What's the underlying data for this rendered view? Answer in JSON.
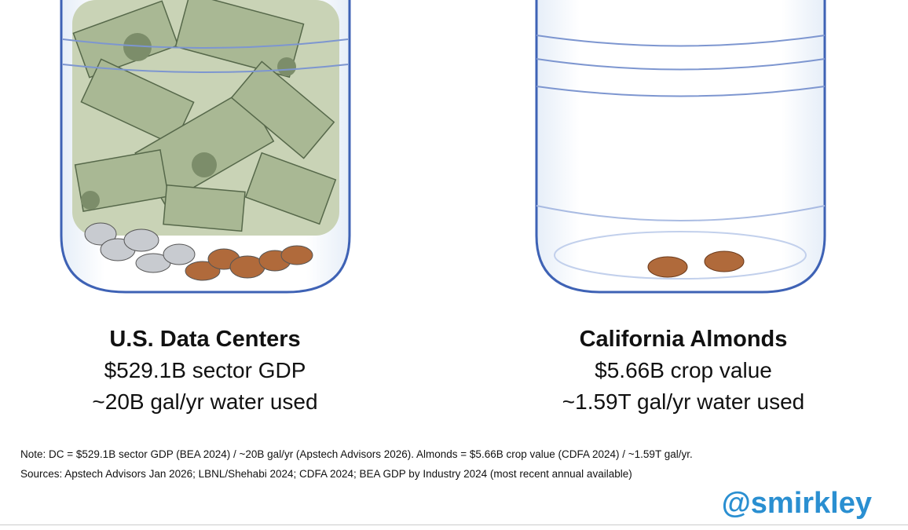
{
  "panels": [
    {
      "title": "U.S. Data Centers",
      "lines": [
        "$529.1B sector GDP",
        "~20B gal/yr water used"
      ]
    },
    {
      "title": "California Almonds",
      "lines": [
        "$5.66B crop value",
        "~1.59T gal/yr water used"
      ]
    }
  ],
  "notes": [
    "Note: DC = $529.1B sector GDP (BEA 2024) / ~20B gal/yr (Apstech Advisors 2026). Almonds = $5.66B crop value (CDFA 2024) / ~1.59T gal/yr.",
    "Sources: Apstech Advisors Jan 2026; LBNL/Shehabi 2024; CDFA 2024; BEA GDP by Industry 2024 (most recent annual available)"
  ],
  "handle": "@smirkley"
}
